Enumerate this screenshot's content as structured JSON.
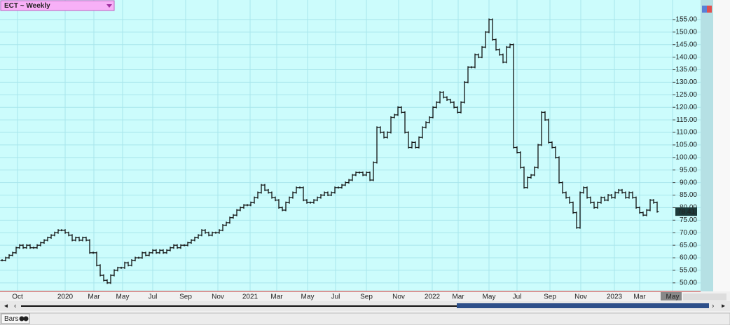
{
  "chart_data": {
    "type": "hlc",
    "title": "ECT ~ Weekly",
    "footer": "Bars",
    "series": [
      {
        "name": "ECT",
        "color": "#111111",
        "values": [
          59,
          60,
          61,
          62,
          64,
          65,
          64,
          65,
          64,
          64,
          65,
          66,
          67,
          68,
          69,
          70,
          71,
          71,
          70,
          69,
          67,
          68,
          67,
          68,
          67,
          62,
          62,
          57,
          53,
          51,
          50,
          53,
          55,
          56,
          56,
          58,
          57,
          59,
          60,
          60,
          62,
          61,
          62,
          63,
          62,
          63,
          62,
          63,
          64,
          65,
          64,
          65,
          65,
          66,
          67,
          68,
          69,
          71,
          70,
          69,
          70,
          70,
          71,
          73,
          74,
          76,
          77,
          79,
          80,
          81,
          81,
          82,
          84,
          86,
          89,
          87,
          86,
          84,
          83,
          80,
          79,
          82,
          84,
          86,
          88,
          88,
          83,
          82,
          82,
          83,
          84,
          85,
          86,
          85,
          86,
          88,
          88,
          89,
          90,
          91,
          93,
          94,
          94,
          93,
          94,
          91,
          98,
          112,
          110,
          108,
          110,
          116,
          117,
          120,
          118,
          110,
          104,
          106,
          104,
          108,
          112,
          114,
          116,
          120,
          122,
          126,
          124,
          123,
          122,
          120,
          118,
          122,
          130,
          136,
          136,
          141,
          140,
          144,
          150,
          155,
          147,
          143,
          141,
          138,
          144,
          145,
          104,
          102,
          96,
          88,
          92,
          93,
          96,
          105,
          118,
          115,
          106,
          104,
          100,
          90,
          86,
          84,
          82,
          78,
          72,
          86,
          88,
          84,
          82,
          80,
          82,
          84,
          83,
          85,
          84,
          86,
          87,
          86,
          84,
          86,
          84,
          80,
          78,
          77,
          79,
          83,
          82,
          78.41
        ]
      }
    ],
    "xlim": [
      -0.6,
      191.4
    ],
    "xticks": [
      {
        "value": 4.4,
        "label": "Oct"
      },
      {
        "value": 18,
        "label": "2020"
      },
      {
        "value": 26.2,
        "label": "Mar"
      },
      {
        "value": 34.4,
        "label": "May"
      },
      {
        "value": 43,
        "label": "Jul"
      },
      {
        "value": 52.4,
        "label": "Sep"
      },
      {
        "value": 61.6,
        "label": "Nov"
      },
      {
        "value": 70.8,
        "label": "2021"
      },
      {
        "value": 78.4,
        "label": "Mar"
      },
      {
        "value": 87.2,
        "label": "May"
      },
      {
        "value": 95.2,
        "label": "Jul"
      },
      {
        "value": 104,
        "label": "Sep"
      },
      {
        "value": 113.2,
        "label": "Nov"
      },
      {
        "value": 122.8,
        "label": "2022"
      },
      {
        "value": 130.2,
        "label": "Mar"
      },
      {
        "value": 139,
        "label": "May"
      },
      {
        "value": 147,
        "label": "Jul"
      },
      {
        "value": 156.4,
        "label": "Sep"
      },
      {
        "value": 165.2,
        "label": "Nov"
      },
      {
        "value": 174.8,
        "label": "2023"
      },
      {
        "value": 182,
        "label": "Mar"
      },
      {
        "value": 191.4,
        "label": "May"
      }
    ],
    "ylim": [
      46.6,
      162.8
    ],
    "yticks": [
      {
        "value": 50,
        "label": "50.00"
      },
      {
        "value": 55,
        "label": "55.00"
      },
      {
        "value": 60,
        "label": "60.00"
      },
      {
        "value": 65,
        "label": "65.00"
      },
      {
        "value": 70,
        "label": "70.00"
      },
      {
        "value": 75,
        "label": "75.00"
      },
      {
        "value": 80,
        "label": "80.00"
      },
      {
        "value": 85,
        "label": "85.00"
      },
      {
        "value": 90,
        "label": "90.00"
      },
      {
        "value": 95,
        "label": "95.00"
      },
      {
        "value": 100,
        "label": "100.00"
      },
      {
        "value": 105,
        "label": "105.00"
      },
      {
        "value": 110,
        "label": "110.00"
      },
      {
        "value": 115,
        "label": "115.00"
      },
      {
        "value": 120,
        "label": "120.00"
      },
      {
        "value": 125,
        "label": "125.00"
      },
      {
        "value": 130,
        "label": "130.00"
      },
      {
        "value": 135,
        "label": "135.00"
      },
      {
        "value": 140,
        "label": "140.00"
      },
      {
        "value": 145,
        "label": "145.00"
      },
      {
        "value": 150,
        "label": "150.00"
      },
      {
        "value": 155,
        "label": "155.00"
      }
    ],
    "grid": true
  }
}
